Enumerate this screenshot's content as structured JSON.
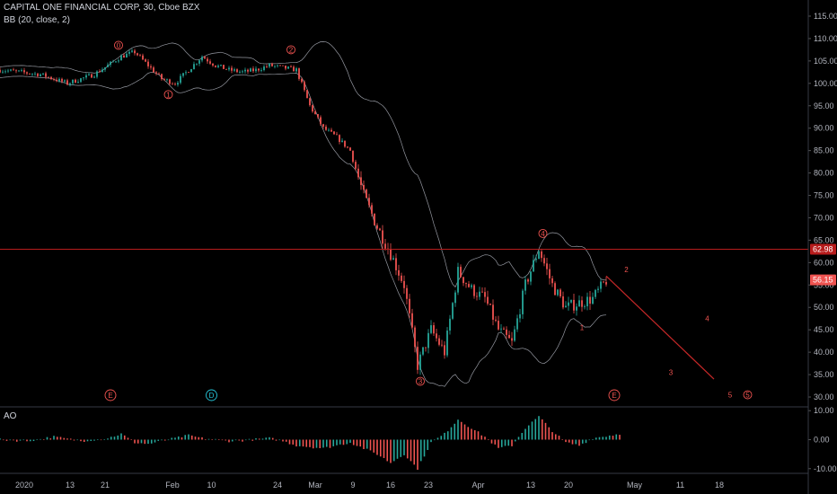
{
  "header": {
    "symbol_line": "CAPITAL ONE FINANCIAL CORP, 30, Cboe BZX",
    "indicator_line": "BB (20, close, 2)",
    "ao_label": "AO"
  },
  "colors": {
    "background": "#000000",
    "up": "#26a69a",
    "down": "#ef5350",
    "bands": "#9598a1",
    "level_line": "#b71c1c",
    "price_badge": "#ef5350",
    "level_badge": "#b71c1c",
    "wave_label": "#ef5350",
    "cycle_label_d": "#26c6da"
  },
  "chart_data": [
    {
      "type": "candlestick",
      "title": "CAPITAL ONE FINANCIAL CORP, 30, Cboe BZX",
      "indicator": "BB (20, close, 2)",
      "y_ticks": [
        "115.00",
        "110.00",
        "105.00",
        "100.00",
        "95.00",
        "90.00",
        "85.00",
        "80.00",
        "75.00",
        "70.00",
        "65.00",
        "60.00",
        "55.00",
        "50.00",
        "45.00",
        "40.00",
        "35.00",
        "30.00"
      ],
      "ylim": [
        28,
        117
      ],
      "x_ticks": [
        "2020",
        "13",
        "21",
        "Feb",
        "10",
        "24",
        "Mar",
        "9",
        "16",
        "23",
        "Apr",
        "13",
        "20",
        "May",
        "11",
        "18"
      ],
      "current_price": "56.15",
      "horizontal_level": "62.98",
      "price_path": [
        [
          0,
          103
        ],
        [
          3,
          102
        ],
        [
          5,
          100
        ],
        [
          7,
          102
        ],
        [
          9,
          106
        ],
        [
          10,
          107
        ],
        [
          11,
          104
        ],
        [
          12,
          101
        ],
        [
          13,
          100
        ],
        [
          14,
          103
        ],
        [
          15,
          106
        ],
        [
          16,
          104
        ],
        [
          17,
          103
        ],
        [
          18,
          102.5
        ],
        [
          19,
          103
        ],
        [
          20,
          104
        ],
        [
          22,
          103
        ],
        [
          23,
          95
        ],
        [
          24,
          90
        ],
        [
          25,
          88
        ],
        [
          26,
          85
        ],
        [
          27,
          75
        ],
        [
          28,
          68
        ],
        [
          29,
          62
        ],
        [
          30,
          55
        ],
        [
          31,
          37
        ],
        [
          32,
          45
        ],
        [
          33,
          40
        ],
        [
          34,
          58
        ],
        [
          35,
          54
        ],
        [
          36,
          52
        ],
        [
          37,
          45
        ],
        [
          38,
          42
        ],
        [
          39,
          55
        ],
        [
          40,
          63
        ],
        [
          41,
          55
        ],
        [
          42,
          50
        ],
        [
          43,
          51
        ],
        [
          44,
          52
        ],
        [
          45,
          56
        ]
      ],
      "projection": [
        [
          45,
          57
        ],
        [
          53,
          34
        ]
      ],
      "wave_labels": [
        {
          "text": "0",
          "x": 8.8,
          "y": 108.5,
          "circled": true
        },
        {
          "text": "1",
          "x": 12.5,
          "y": 97.5,
          "circled": true
        },
        {
          "text": "2",
          "x": 21.6,
          "y": 107.5,
          "circled": true
        },
        {
          "text": "3",
          "x": 31.2,
          "y": 33.5,
          "circled": true
        },
        {
          "text": "4",
          "x": 40.3,
          "y": 66.5,
          "circled": true
        },
        {
          "text": "1",
          "x": 43.2,
          "y": 45.5,
          "circled": false
        },
        {
          "text": "2",
          "x": 46.5,
          "y": 58.5,
          "circled": false
        },
        {
          "text": "3",
          "x": 49.8,
          "y": 35.5,
          "circled": false
        },
        {
          "text": "4",
          "x": 52.5,
          "y": 47.5,
          "circled": false
        },
        {
          "text": "5",
          "x": 54.2,
          "y": 30.5,
          "circled": false
        },
        {
          "text": "5",
          "x": 55.5,
          "y": 30.5,
          "circled": true
        }
      ],
      "cycle_labels": [
        {
          "text": "E",
          "x": 8.2
        },
        {
          "text": "D",
          "x": 15.7
        },
        {
          "text": "E",
          "x": 45.6
        }
      ]
    },
    {
      "type": "bar",
      "title": "AO",
      "y_ticks": [
        "10.00",
        "0.00",
        "-10.00"
      ],
      "ylim": [
        -11,
        11
      ],
      "ao_path": [
        [
          0,
          0
        ],
        [
          2,
          -0.5
        ],
        [
          4,
          1
        ],
        [
          6,
          -0.5
        ],
        [
          8,
          0.5
        ],
        [
          9,
          2
        ],
        [
          10,
          -1
        ],
        [
          11,
          -1.5
        ],
        [
          12,
          -0.5
        ],
        [
          13,
          0.5
        ],
        [
          14,
          1.5
        ],
        [
          15,
          0.5
        ],
        [
          17,
          -0.5
        ],
        [
          18,
          -0.3
        ],
        [
          20,
          0.5
        ],
        [
          21,
          -0.5
        ],
        [
          22,
          -2
        ],
        [
          24,
          -3
        ],
        [
          26,
          -1
        ],
        [
          28,
          -5
        ],
        [
          29,
          -8
        ],
        [
          30,
          -5
        ],
        [
          31,
          -10
        ],
        [
          32,
          -1
        ],
        [
          33,
          2
        ],
        [
          34,
          7
        ],
        [
          35,
          4
        ],
        [
          36,
          1
        ],
        [
          37,
          -3
        ],
        [
          38,
          -2
        ],
        [
          39,
          4
        ],
        [
          40,
          8
        ],
        [
          41,
          3
        ],
        [
          42,
          -1
        ],
        [
          43,
          -2
        ],
        [
          44,
          0.5
        ],
        [
          46,
          2
        ]
      ]
    }
  ]
}
